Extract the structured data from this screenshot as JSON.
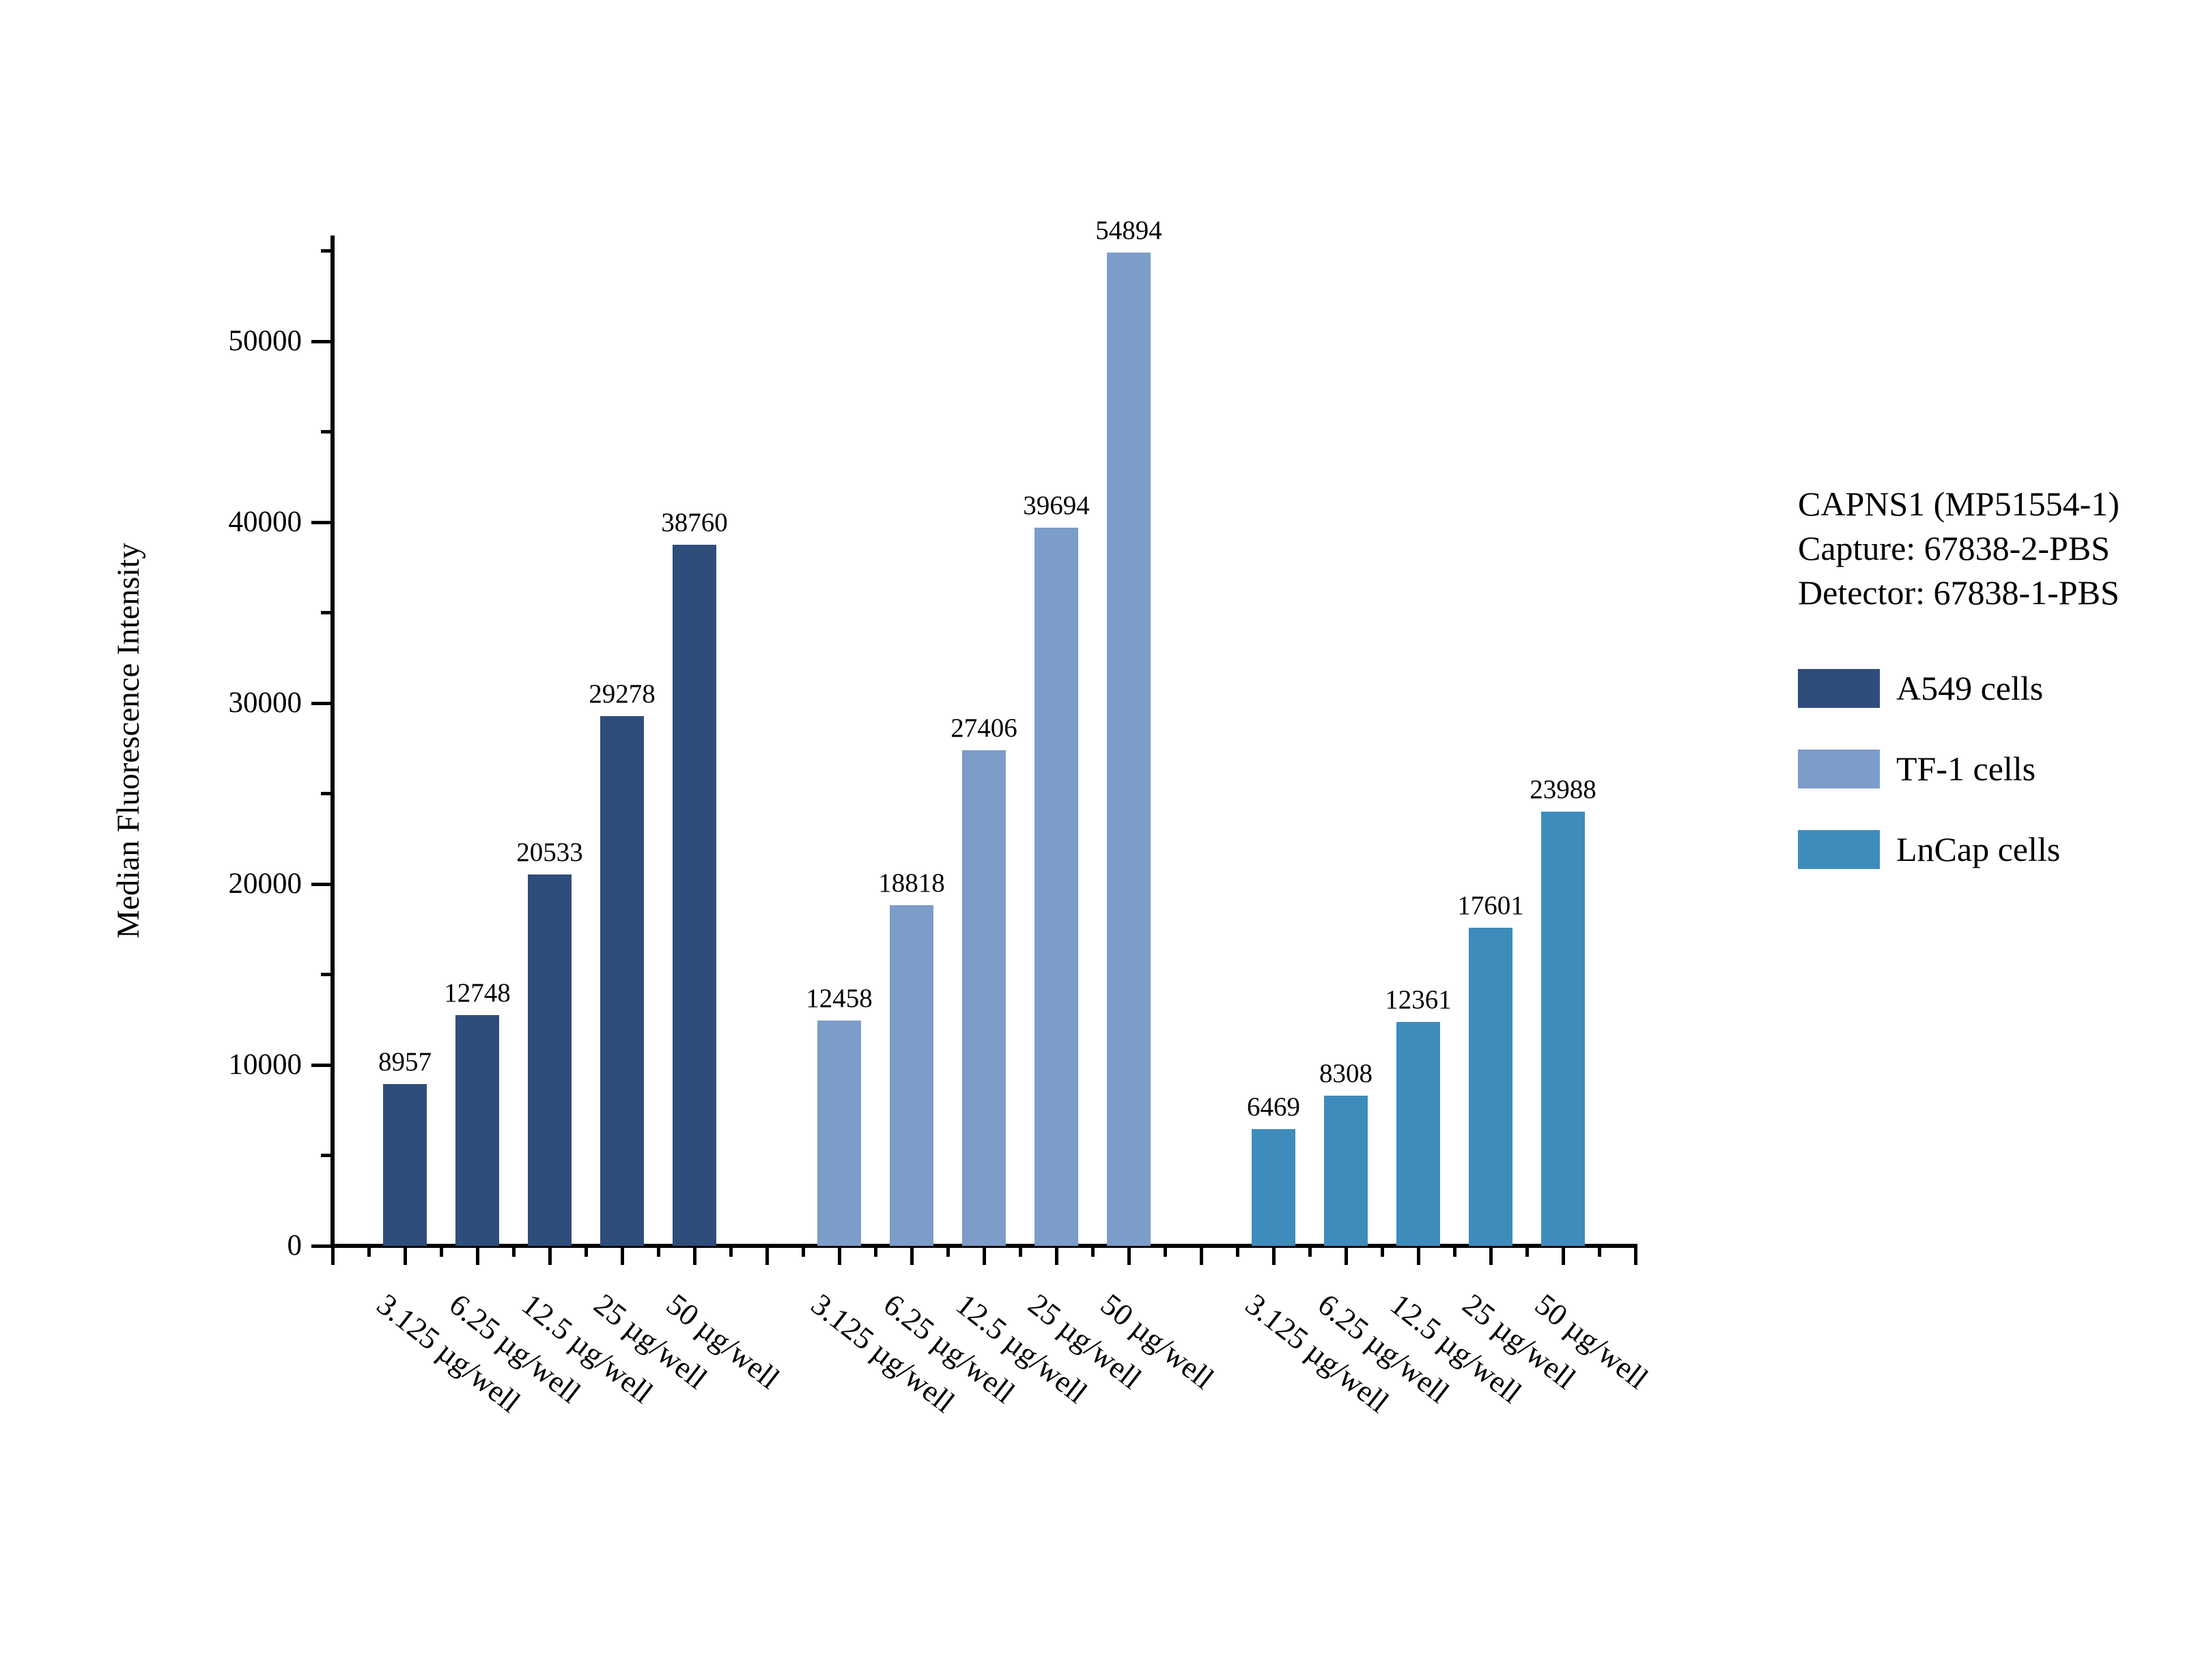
{
  "page": {
    "background": "#ffffff"
  },
  "chart_data": {
    "type": "bar",
    "title": "",
    "xlabel": "",
    "ylabel": "Median Fluorescence Intensity",
    "ylim": [
      0,
      55800
    ],
    "yticks": [
      0,
      10000,
      20000,
      30000,
      40000,
      50000
    ],
    "y_minor_step": 5000,
    "grid": false,
    "legend_position": "right",
    "axis_color": "#000000",
    "text_color": "#000000",
    "categories": [
      "3.125 µg/well",
      "6.25 µg/well",
      "12.5 µg/well",
      "25 µg/well",
      "50 µg/well"
    ],
    "series": [
      {
        "name": "A549 cells",
        "color": "#2E4D7B",
        "values": [
          8957,
          12748,
          20533,
          29278,
          38760
        ]
      },
      {
        "name": "TF-1 cells",
        "color": "#7C9CCA",
        "values": [
          12458,
          18818,
          27406,
          39694,
          54894
        ]
      },
      {
        "name": "LnCap cells",
        "color": "#3E8CBC",
        "values": [
          6469,
          8308,
          12361,
          17601,
          23988
        ]
      }
    ],
    "annotation": {
      "line1": "CAPNS1 (MP51554-1)",
      "line2": "Capture: 67838-2-PBS",
      "line3": "Detector: 67838-1-PBS"
    }
  }
}
